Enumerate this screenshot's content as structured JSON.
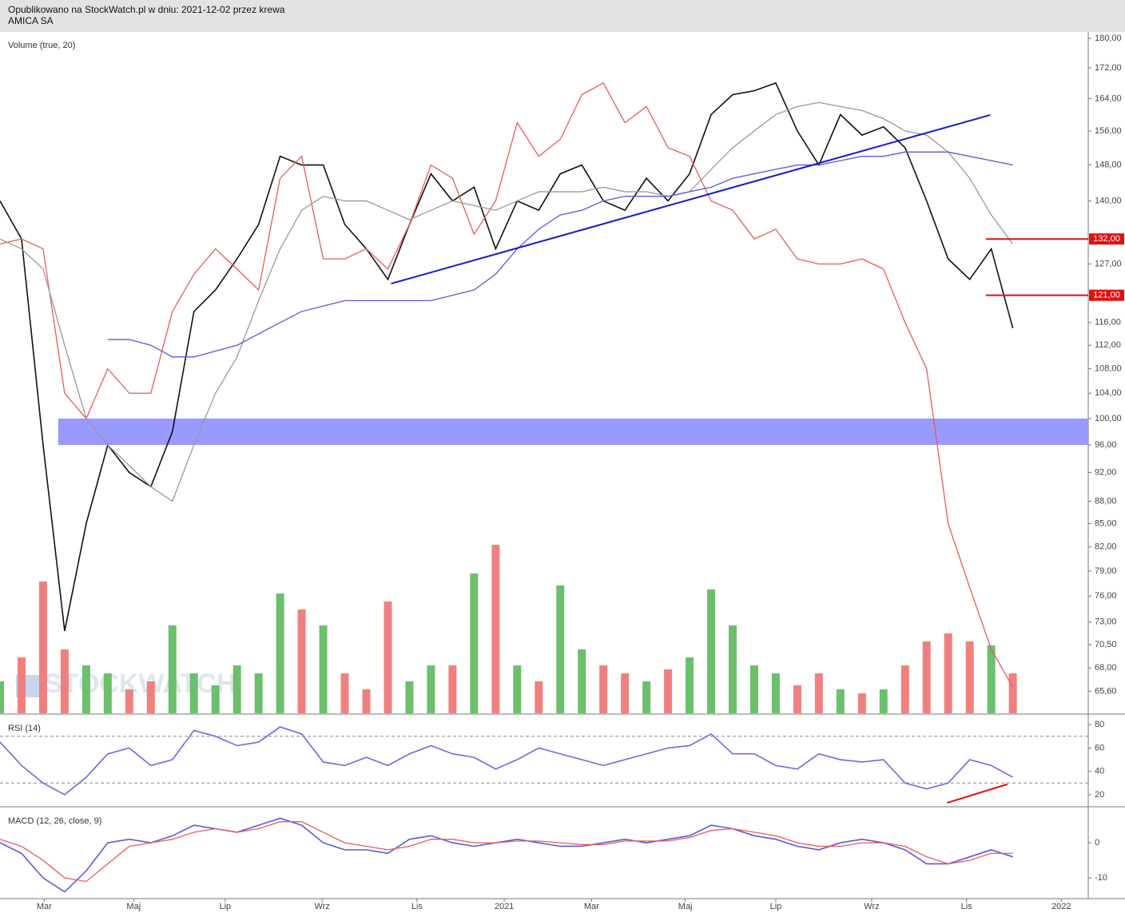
{
  "header": {
    "published": "Opublikowano na StockWatch.pl w dniu: 2021-12-02 przez krewa",
    "instrument": "AMICA SA",
    "watermark": "STOCKWATCH"
  },
  "chart_data": [
    {
      "type": "line",
      "title": "Volume (true, 20)",
      "log": true,
      "x": [
        0,
        2,
        4,
        6,
        8,
        10,
        12,
        14,
        16,
        18,
        20,
        22,
        24,
        26,
        28,
        30,
        32,
        34,
        36,
        38,
        40,
        42,
        44,
        46,
        48,
        50,
        52,
        54,
        56,
        58,
        60,
        62,
        64,
        66,
        68,
        70,
        72,
        74,
        76,
        78,
        80,
        82,
        84,
        86,
        88,
        90,
        92,
        94
      ],
      "xlim": [
        0,
        101
      ],
      "ylim": [
        63.4,
        181.8
      ],
      "yticks": [
        {
          "value": 180,
          "label": "180,00"
        },
        {
          "value": 172,
          "label": "172,00"
        },
        {
          "value": 164,
          "label": "164,00"
        },
        {
          "value": 156,
          "label": "156,00"
        },
        {
          "value": 148,
          "label": "148,00"
        },
        {
          "value": 140,
          "label": "140,00"
        },
        {
          "value": 132,
          "label": "132,00"
        },
        {
          "value": 127,
          "label": "127,00"
        },
        {
          "value": 116,
          "label": "116,00"
        },
        {
          "value": 112,
          "label": "112,00"
        },
        {
          "value": 108,
          "label": "108,00"
        },
        {
          "value": 104,
          "label": "104,00"
        },
        {
          "value": 100,
          "label": "100,00"
        },
        {
          "value": 96,
          "label": "96,00"
        },
        {
          "value": 92,
          "label": "92,00"
        },
        {
          "value": 88,
          "label": "88,00"
        },
        {
          "value": 85,
          "label": "85,00"
        },
        {
          "value": 82,
          "label": "82,00"
        },
        {
          "value": 79,
          "label": "79,00"
        },
        {
          "value": 76,
          "label": "76,00"
        },
        {
          "value": 73,
          "label": "73,00"
        },
        {
          "value": 70.5,
          "label": "70,50"
        },
        {
          "value": 68,
          "label": "68,00"
        },
        {
          "value": 65.6,
          "label": "65,60"
        }
      ],
      "series": [
        {
          "color": "#111111",
          "values": [
            140,
            132,
            96,
            72,
            85,
            96,
            92,
            90,
            98,
            118,
            122,
            128,
            135,
            150,
            148,
            148,
            135,
            130,
            124,
            135,
            146,
            140,
            143,
            130,
            140,
            138,
            146,
            148,
            140,
            138,
            145,
            140,
            146,
            160,
            165,
            166,
            168,
            156,
            148,
            160,
            155,
            157,
            152,
            140,
            128,
            124,
            130,
            115
          ]
        },
        {
          "color": "#e85c5c",
          "values": [
            131,
            132,
            130,
            104,
            100,
            108,
            104,
            104,
            118,
            125,
            130,
            126,
            122,
            145,
            150,
            128,
            128,
            130,
            126,
            135,
            148,
            145,
            133,
            140,
            158,
            150,
            154,
            165,
            168,
            158,
            162,
            152,
            150,
            140,
            138,
            132,
            134,
            128,
            127,
            127,
            128,
            126,
            116,
            108,
            85,
            77,
            70,
            66
          ]
        },
        {
          "color": "#999999",
          "values": [
            132,
            130,
            126,
            112,
            100,
            96,
            93,
            90,
            88,
            96,
            104,
            110,
            120,
            130,
            138,
            141,
            140,
            140,
            138,
            136,
            138,
            140,
            139,
            138,
            140,
            142,
            142,
            142,
            143,
            142,
            142,
            141,
            142,
            147,
            152,
            156,
            160,
            162,
            163,
            162,
            161,
            159,
            156,
            155,
            151,
            145,
            137,
            131
          ]
        },
        {
          "color": "#5a5ad6",
          "values": [
            null,
            null,
            null,
            null,
            null,
            113,
            113,
            112,
            110,
            110,
            111,
            112,
            114,
            116,
            118,
            119,
            120,
            120,
            120,
            120,
            120,
            121,
            122,
            125,
            130,
            134,
            137,
            138,
            140,
            141,
            141,
            141,
            142,
            143,
            145,
            146,
            147,
            148,
            148,
            149,
            150,
            150,
            151,
            151,
            151,
            150,
            149,
            148
          ]
        }
      ],
      "volume": {
        "ylim": [
          0,
          240
        ],
        "up_color": "#6cbf6c",
        "down_color": "#f08080",
        "values": [
          40,
          70,
          165,
          80,
          60,
          50,
          30,
          40,
          110,
          50,
          35,
          60,
          50,
          150,
          130,
          110,
          50,
          30,
          140,
          40,
          60,
          60,
          175,
          211,
          60,
          40,
          160,
          80,
          60,
          50,
          40,
          55,
          70,
          155,
          110,
          60,
          50,
          35,
          50,
          30,
          25,
          30,
          60,
          90,
          100,
          90,
          85,
          50
        ]
      },
      "band": {
        "ylim": [
          96,
          100
        ],
        "color": "#9999ff"
      },
      "trend_line": {
        "x": [
          36.3,
          91.9
        ],
        "values": [
          123.2,
          159.9
        ],
        "color": "#1a1acc"
      },
      "levels": [
        {
          "value": 132,
          "label": "132,00"
        },
        {
          "value": 121,
          "label": "121,00"
        }
      ],
      "level_color": "#e01010"
    },
    {
      "type": "line",
      "title": "RSI (14)",
      "x": [
        0,
        2,
        4,
        6,
        8,
        10,
        12,
        14,
        16,
        18,
        20,
        22,
        24,
        26,
        28,
        30,
        32,
        34,
        36,
        38,
        40,
        42,
        44,
        46,
        48,
        50,
        52,
        54,
        56,
        58,
        60,
        62,
        64,
        66,
        68,
        70,
        72,
        74,
        76,
        78,
        80,
        82,
        84,
        86,
        88,
        90,
        92,
        94
      ],
      "xlim": [
        0,
        101
      ],
      "ylim": [
        9.7,
        88.3
      ],
      "yticks": [
        80,
        60,
        40,
        20
      ],
      "guides": [
        70,
        30
      ],
      "series": [
        {
          "color": "#6a6ae6",
          "values": [
            65,
            45,
            30,
            20,
            35,
            55,
            60,
            45,
            50,
            75,
            70,
            62,
            65,
            78,
            72,
            48,
            45,
            52,
            45,
            55,
            62,
            55,
            52,
            42,
            50,
            60,
            55,
            50,
            45,
            50,
            55,
            60,
            62,
            72,
            55,
            55,
            45,
            42,
            55,
            50,
            48,
            50,
            30,
            25,
            30,
            50,
            45,
            35
          ]
        }
      ],
      "divergence": {
        "x": [
          87.9,
          93.5
        ],
        "values": [
          13.1,
          29
        ],
        "color": "#e01010"
      }
    },
    {
      "type": "line",
      "title": "MACD (12, 26, close, 9)",
      "x": [
        0,
        2,
        4,
        6,
        8,
        10,
        12,
        14,
        16,
        18,
        20,
        22,
        24,
        26,
        28,
        30,
        32,
        34,
        36,
        38,
        40,
        42,
        44,
        46,
        48,
        50,
        52,
        54,
        56,
        58,
        60,
        62,
        64,
        66,
        68,
        70,
        72,
        74,
        76,
        78,
        80,
        82,
        84,
        86,
        88,
        90,
        92,
        94
      ],
      "xlim": [
        0,
        101
      ],
      "ylim": [
        -15.9,
        9.8
      ],
      "yticks": [
        0,
        -10
      ],
      "xticks": [
        {
          "value": 4.1,
          "label": "Mar"
        },
        {
          "value": 12.4,
          "label": "Maj"
        },
        {
          "value": 20.9,
          "label": "Lip"
        },
        {
          "value": 29.9,
          "label": "Wrz"
        },
        {
          "value": 38.7,
          "label": "Lis"
        },
        {
          "value": 46.8,
          "label": "2021"
        },
        {
          "value": 54.9,
          "label": "Mar"
        },
        {
          "value": 63.6,
          "label": "Maj"
        },
        {
          "value": 72,
          "label": "Lip"
        },
        {
          "value": 80.9,
          "label": "Wrz"
        },
        {
          "value": 89.7,
          "label": "Lis"
        },
        {
          "value": 98.5,
          "label": "2022"
        }
      ],
      "series": [
        {
          "color": "#5a5ad6",
          "values": [
            0,
            -3,
            -10,
            -14,
            -8,
            0,
            1,
            0,
            2,
            5,
            4,
            3,
            5,
            7,
            5,
            0,
            -2,
            -2,
            -3,
            1,
            2,
            0,
            -1,
            0,
            1,
            0,
            -1,
            -1,
            0,
            1,
            0,
            1,
            2,
            5,
            4,
            2,
            1,
            -1,
            -2,
            0,
            1,
            0,
            -2,
            -6,
            -6,
            -4,
            -2,
            -4
          ]
        },
        {
          "color": "#e85c5c",
          "values": [
            1,
            -1,
            -5,
            -10,
            -11,
            -6,
            -1,
            0,
            1,
            3,
            4,
            3,
            4,
            6,
            6,
            3,
            0,
            -1,
            -2,
            -1,
            1,
            1,
            0,
            0,
            0.5,
            0.5,
            0,
            -0.5,
            -0.5,
            0.5,
            0.5,
            0.5,
            1.5,
            3.5,
            4,
            3,
            2,
            0,
            -1,
            -1,
            0,
            0,
            -1,
            -4,
            -6,
            -5,
            -3,
            -3
          ]
        }
      ]
    }
  ]
}
